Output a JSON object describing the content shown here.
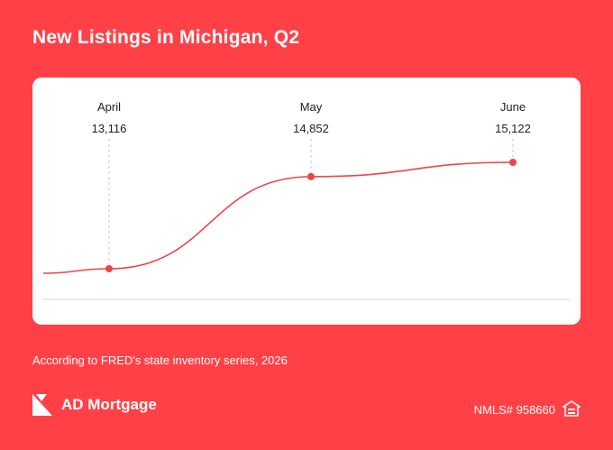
{
  "title": "New Listings in Michigan, Q2",
  "source": "According to FRED's state inventory series, 2026",
  "brand": {
    "name": "AD Mortgage",
    "logo_icon": "ad-mortgage-logo-icon",
    "nmls": "NMLS# 958660",
    "housing_icon": "equal-housing-icon"
  },
  "colors": {
    "background": "#ff4147",
    "card": "#ffffff",
    "line": "#ee4447",
    "text": "#222222"
  },
  "chart_data": {
    "type": "line",
    "title": "New Listings in Michigan, Q2",
    "categories": [
      "April",
      "May",
      "June"
    ],
    "series": [
      {
        "values": [
          13116,
          14852,
          15122
        ]
      }
    ],
    "labels": [
      "13,116",
      "14,852",
      "15,122"
    ],
    "grid": false
  }
}
